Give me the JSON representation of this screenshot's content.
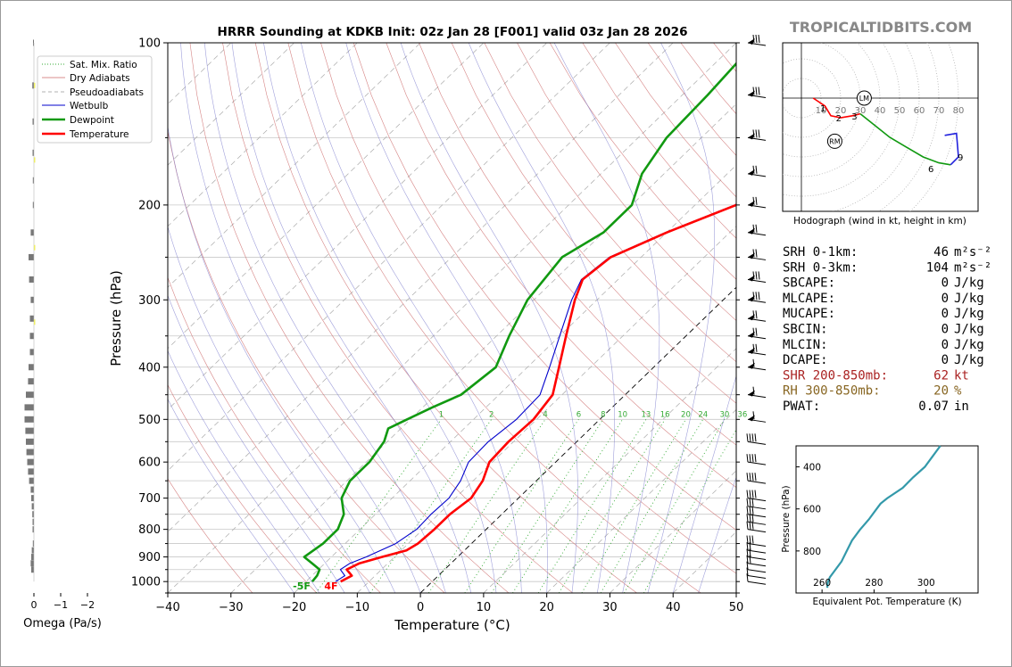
{
  "header": {
    "title": "HRRR Sounding at KDKB Init: 02z Jan 28 [F001] valid 03z Jan 28 2026",
    "brand": "TROPICALTIDBITS.COM"
  },
  "colors": {
    "temperature": "#ff0000",
    "dewpoint": "#119911",
    "wetbulb": "#0000cc",
    "dry_adiabat": "#cc6666",
    "pseudoadiabat": "#999999",
    "mixing_ratio": "#33aa33",
    "theta_e": "#3399aa",
    "omega_bar": "#777777",
    "shr": "#aa2222",
    "rh": "#886622"
  },
  "chart_data": [
    {
      "id": "skewt",
      "type": "line",
      "title": "HRRR Sounding at KDKB Init: 02z Jan 28 [F001] valid 03z Jan 28 2026",
      "xlabel": "Temperature (°C)",
      "ylabel": "Pressure (hPa)",
      "xlim": [
        -40,
        50
      ],
      "ylim": [
        1050,
        100
      ],
      "y_scale": "log",
      "x_ticks": [
        "−40",
        "−30",
        "−20",
        "−10",
        "0",
        "10",
        "20",
        "30",
        "40",
        "50"
      ],
      "y_ticks": [
        "100",
        "200",
        "300",
        "400",
        "500",
        "600",
        "700",
        "800",
        "900",
        "1000"
      ],
      "legend": {
        "placement": "top-left",
        "entries": [
          "Sat. Mix. Ratio",
          "Dry Adiabats",
          "Pseudoadiabats",
          "Wetbulb",
          "Dewpoint",
          "Temperature"
        ]
      },
      "mixing_ratio_labels": [
        "1",
        "2",
        "4",
        "6",
        "8",
        "10",
        "13",
        "16",
        "20",
        "24",
        "30",
        "36"
      ],
      "surface_labels": {
        "dewpoint": "-5F",
        "temperature": "4F"
      },
      "series": [
        {
          "name": "Temperature",
          "points": [
            [
              1000,
              -14.5
            ],
            [
              975,
              -13.7
            ],
            [
              950,
              -15.5
            ],
            [
              925,
              -14.5
            ],
            [
              900,
              -12.0
            ],
            [
              875,
              -9.2
            ],
            [
              850,
              -8.5
            ],
            [
              800,
              -8.2
            ],
            [
              750,
              -8.2
            ],
            [
              700,
              -7.5
            ],
            [
              650,
              -8.5
            ],
            [
              600,
              -10.5
            ],
            [
              550,
              -10.8
            ],
            [
              500,
              -10.5
            ],
            [
              450,
              -11.5
            ],
            [
              400,
              -15.0
            ],
            [
              350,
              -19.0
            ],
            [
              300,
              -23.5
            ],
            [
              275,
              -25.6
            ],
            [
              250,
              -24.8
            ],
            [
              225,
              -20.0
            ],
            [
              200,
              -13.5
            ],
            [
              175,
              -11.0
            ],
            [
              150,
              -8.2
            ],
            [
              125,
              -5.0
            ],
            [
              100,
              -1.8
            ]
          ]
        },
        {
          "name": "Dewpoint",
          "points": [
            [
              1000,
              -19.0
            ],
            [
              975,
              -19.2
            ],
            [
              950,
              -19.8
            ],
            [
              925,
              -22.0
            ],
            [
              900,
              -24.3
            ],
            [
              850,
              -23.5
            ],
            [
              800,
              -23.5
            ],
            [
              750,
              -25.0
            ],
            [
              700,
              -28.0
            ],
            [
              650,
              -29.5
            ],
            [
              600,
              -29.5
            ],
            [
              550,
              -30.5
            ],
            [
              520,
              -32.0
            ],
            [
              500,
              -30.5
            ],
            [
              475,
              -28.5
            ],
            [
              450,
              -26.0
            ],
            [
              400,
              -25.0
            ],
            [
              350,
              -28.0
            ],
            [
              300,
              -31.0
            ],
            [
              250,
              -32.5
            ],
            [
              225,
              -30.0
            ],
            [
              200,
              -30.0
            ],
            [
              175,
              -33.5
            ],
            [
              150,
              -35.5
            ],
            [
              125,
              -36.0
            ],
            [
              100,
              -37.0
            ]
          ]
        },
        {
          "name": "Wetbulb",
          "points": [
            [
              1000,
              -15.3
            ],
            [
              975,
              -14.8
            ],
            [
              950,
              -16.5
            ],
            [
              925,
              -16.0
            ],
            [
              900,
              -14.5
            ],
            [
              850,
              -12.0
            ],
            [
              800,
              -11.0
            ],
            [
              750,
              -11.2
            ],
            [
              700,
              -11.0
            ],
            [
              650,
              -12.0
            ],
            [
              600,
              -13.8
            ],
            [
              550,
              -14.0
            ],
            [
              500,
              -13.2
            ],
            [
              450,
              -13.5
            ],
            [
              400,
              -16.5
            ],
            [
              350,
              -20.0
            ],
            [
              300,
              -24.0
            ],
            [
              275,
              -25.8
            ],
            [
              250,
              -25.0
            ],
            [
              225,
              -20.2
            ],
            [
              200,
              -13.7
            ],
            [
              175,
              -11.2
            ],
            [
              150,
              -8.4
            ],
            [
              125,
              -5.2
            ],
            [
              100,
              -2.0
            ]
          ]
        }
      ]
    },
    {
      "id": "hodograph",
      "type": "line",
      "title": "Hodograph (wind in kt, height in km)",
      "ring_labels": [
        "10",
        "20",
        "30",
        "40",
        "50",
        "60",
        "70",
        "80"
      ],
      "point_labels": [
        "1",
        "2",
        "3",
        "6",
        "9"
      ],
      "markers": [
        "LM",
        "RM"
      ]
    },
    {
      "id": "theta_e",
      "type": "line",
      "xlabel": "Equivalent Pot. Temperature (K)",
      "ylabel": "Pressure (hPa)",
      "xlim": [
        250,
        320
      ],
      "ylim": [
        1000,
        300
      ],
      "x_ticks": [
        "260",
        "280",
        "300"
      ],
      "y_ticks": [
        "400",
        "600",
        "800"
      ],
      "series": [
        {
          "name": "Theta-E",
          "points": [
            [
              975,
              262.0
            ],
            [
              950,
              262.2
            ],
            [
              925,
              263.0
            ],
            [
              900,
              264.5
            ],
            [
              850,
              267.5
            ],
            [
              800,
              269.5
            ],
            [
              750,
              271.5
            ],
            [
              700,
              274.5
            ],
            [
              650,
              278.0
            ],
            [
              600,
              281.0
            ],
            [
              575,
              282.5
            ],
            [
              550,
              285.0
            ],
            [
              500,
              291.0
            ],
            [
              450,
              295.0
            ],
            [
              400,
              299.5
            ],
            [
              350,
              302.5
            ],
            [
              300,
              305.5
            ]
          ]
        }
      ]
    },
    {
      "id": "omega",
      "type": "bar",
      "xlabel": "Omega (Pa/s)",
      "x_ticks": [
        "0",
        "−1",
        "−2"
      ],
      "values_note": "rising motion plotted to the right",
      "points": [
        [
          100,
          0.02
        ],
        [
          120,
          0.06
        ],
        [
          140,
          0.05
        ],
        [
          160,
          0.05
        ],
        [
          180,
          0.04
        ],
        [
          200,
          0.04
        ],
        [
          225,
          0.12
        ],
        [
          250,
          0.2
        ],
        [
          275,
          0.18
        ],
        [
          300,
          0.12
        ],
        [
          325,
          0.15
        ],
        [
          350,
          0.15
        ],
        [
          375,
          0.15
        ],
        [
          400,
          0.2
        ],
        [
          425,
          0.22
        ],
        [
          450,
          0.3
        ],
        [
          475,
          0.35
        ],
        [
          500,
          0.35
        ],
        [
          525,
          0.32
        ],
        [
          550,
          0.3
        ],
        [
          575,
          0.28
        ],
        [
          600,
          0.25
        ],
        [
          625,
          0.22
        ],
        [
          650,
          0.18
        ],
        [
          675,
          0.12
        ],
        [
          700,
          0.1
        ],
        [
          725,
          0.08
        ],
        [
          750,
          0.06
        ],
        [
          775,
          0.05
        ],
        [
          800,
          0.05
        ],
        [
          850,
          0.04
        ],
        [
          875,
          0.08
        ],
        [
          900,
          0.1
        ],
        [
          925,
          0.12
        ],
        [
          950,
          0.1
        ]
      ]
    }
  ],
  "wind_barbs": [
    [
      100,
      8,
      60
    ],
    [
      125,
      8,
      60
    ],
    [
      150,
      8,
      55
    ],
    [
      175,
      7,
      55
    ],
    [
      200,
      7,
      55
    ],
    [
      225,
      7,
      55
    ],
    [
      250,
      7,
      50
    ],
    [
      275,
      8,
      50
    ],
    [
      300,
      8,
      50
    ],
    [
      325,
      7,
      50
    ],
    [
      350,
      7,
      50
    ],
    [
      375,
      7,
      50
    ],
    [
      400,
      6,
      50
    ],
    [
      450,
      6,
      50
    ],
    [
      500,
      6,
      50
    ],
    [
      550,
      4,
      45
    ],
    [
      600,
      4,
      45
    ],
    [
      650,
      4,
      40
    ],
    [
      700,
      4,
      40
    ],
    [
      725,
      3,
      35
    ],
    [
      750,
      3,
      30
    ],
    [
      775,
      3,
      30
    ],
    [
      800,
      3,
      30
    ],
    [
      850,
      3,
      25
    ],
    [
      875,
      2,
      25
    ],
    [
      900,
      2,
      20
    ],
    [
      925,
      2,
      20
    ],
    [
      950,
      1,
      15
    ],
    [
      975,
      1,
      10
    ],
    [
      1000,
      1,
      10
    ]
  ],
  "stats": [
    {
      "label": "SRH 0-1km:",
      "value": "46",
      "unit": "m²s⁻²",
      "color": "#000000"
    },
    {
      "label": "SRH 0-3km:",
      "value": "104",
      "unit": "m²s⁻²",
      "color": "#000000"
    },
    {
      "label": "SBCAPE:",
      "value": "0",
      "unit": "J/kg",
      "color": "#000000"
    },
    {
      "label": "MLCAPE:",
      "value": "0",
      "unit": "J/kg",
      "color": "#000000"
    },
    {
      "label": "MUCAPE:",
      "value": "0",
      "unit": "J/kg",
      "color": "#000000"
    },
    {
      "label": "SBCIN:",
      "value": "0",
      "unit": "J/kg",
      "color": "#000000"
    },
    {
      "label": "MLCIN:",
      "value": "0",
      "unit": "J/kg",
      "color": "#000000"
    },
    {
      "label": "DCAPE:",
      "value": "0",
      "unit": "J/kg",
      "color": "#000000"
    },
    {
      "label": "SHR 200-850mb:",
      "value": "62",
      "unit": "kt",
      "color": "#aa2222"
    },
    {
      "label": "RH 300-850mb:",
      "value": "20",
      "unit": "%",
      "color": "#886622"
    },
    {
      "label": "PWAT:",
      "value": "0.07",
      "unit": "in",
      "color": "#000000"
    }
  ]
}
